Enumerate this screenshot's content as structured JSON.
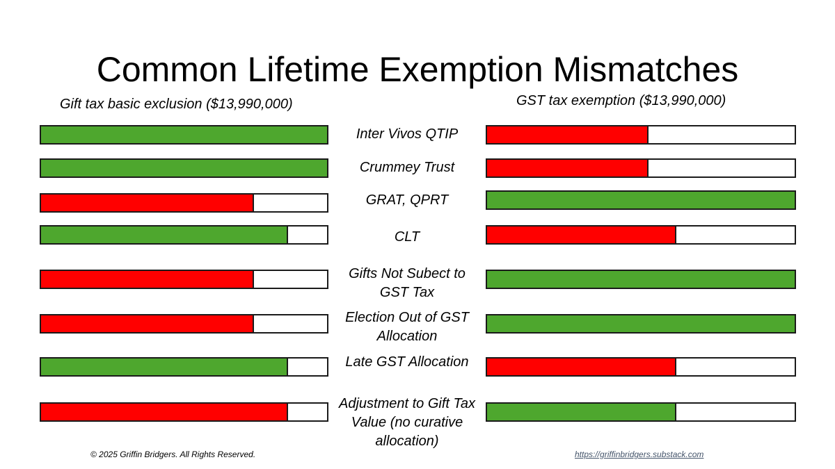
{
  "title": "Common Lifetime Exemption Mismatches",
  "left_header": "Gift tax basic exclusion ($13,990,000)",
  "right_header": "GST tax exemption ($13,990,000)",
  "colors": {
    "red": "#ff0000",
    "green": "#4ea72e",
    "border": "#1a1a1a"
  },
  "rows": [
    {
      "label": "Inter Vivos QTIP",
      "gift": {
        "fill": 1.0,
        "color": "green"
      },
      "gst": {
        "fill": 0.52,
        "color": "red"
      }
    },
    {
      "label": "Crummey Trust",
      "gift": {
        "fill": 1.0,
        "color": "green"
      },
      "gst": {
        "fill": 0.52,
        "color": "red"
      }
    },
    {
      "label": "GRAT, QPRT",
      "gift": {
        "fill": 0.74,
        "color": "red"
      },
      "gst": {
        "fill": 1.0,
        "color": "green"
      }
    },
    {
      "label": "CLT",
      "gift": {
        "fill": 0.86,
        "color": "green"
      },
      "gst": {
        "fill": 0.61,
        "color": "red"
      }
    },
    {
      "label": "Gifts Not Subect to GST Tax",
      "gift": {
        "fill": 0.74,
        "color": "red"
      },
      "gst": {
        "fill": 1.0,
        "color": "green"
      }
    },
    {
      "label": "Election Out of GST Allocation",
      "gift": {
        "fill": 0.74,
        "color": "red"
      },
      "gst": {
        "fill": 1.0,
        "color": "green"
      }
    },
    {
      "label": "Late GST Allocation",
      "gift": {
        "fill": 0.86,
        "color": "green"
      },
      "gst": {
        "fill": 0.61,
        "color": "red"
      }
    },
    {
      "label": "Adjustment to Gift Tax Value (no curative allocation)",
      "gift": {
        "fill": 0.86,
        "color": "red"
      },
      "gst": {
        "fill": 0.61,
        "color": "green"
      }
    }
  ],
  "footer": {
    "copyright": "© 2025 Griffin Bridgers. All Rights Reserved.",
    "link": "https://griffinbridgers.substack.com"
  }
}
